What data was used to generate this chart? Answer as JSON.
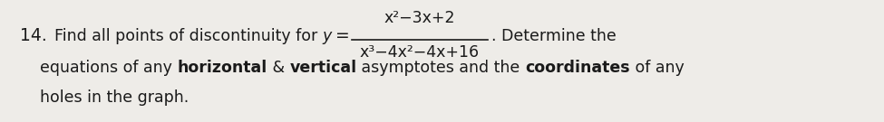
{
  "number": "14.",
  "find_text": "Find all points of discontinuity for ",
  "y_var": "y",
  "numerator": "x²−3x+2",
  "denominator": "x³−4x²−4x+16",
  "after_frac": ". Determine the",
  "line2_plain1": "equations of any ",
  "line2_bold1": "horizontal",
  "line2_plain2": " & ",
  "line2_bold2": "vertical",
  "line2_plain3": " asymptotes and the ",
  "line2_bold3": "coordinates",
  "line2_plain4": " of any",
  "line3": "holes in the graph.",
  "bg_color": "#eeece8",
  "text_color": "#1a1a1a",
  "fontsize": 12.5,
  "fig_width": 9.75,
  "fig_height": 1.35,
  "dpi": 100
}
